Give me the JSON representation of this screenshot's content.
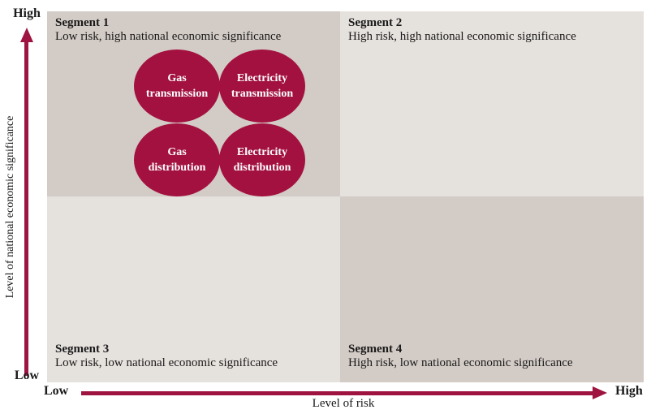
{
  "matrix": {
    "quadrants": [
      {
        "title": "Segment 1",
        "description": "Low risk, high national economic significance",
        "position": "top-left",
        "shade": "dark"
      },
      {
        "title": "Segment 2",
        "description": "High risk, high national economic significance",
        "position": "top-right",
        "shade": "light"
      },
      {
        "title": "Segment 3",
        "description": "Low risk, low national economic significance",
        "position": "bottom-left",
        "shade": "light"
      },
      {
        "title": "Segment 4",
        "description": "High risk, low national economic significance",
        "position": "bottom-right",
        "shade": "dark"
      }
    ],
    "bubbles": [
      {
        "name": "gas-transmission",
        "line1": "Gas",
        "line2": "transmission"
      },
      {
        "name": "electricity-transmission",
        "line1": "Electricity",
        "line2": "transmission"
      },
      {
        "name": "gas-distribution",
        "line1": "Gas",
        "line2": "distribution"
      },
      {
        "name": "electricity-distribution",
        "line1": "Electricity",
        "line2": "distribution"
      }
    ]
  },
  "axes": {
    "y": {
      "label": "Level of national economic significance",
      "high": "High",
      "low": "Low"
    },
    "x": {
      "label": "Level of risk",
      "low": "Low",
      "high": "High"
    }
  },
  "colors": {
    "bubble": "#a31140",
    "arrow": "#9e1340",
    "quadrant_dark": "#d3cbc5",
    "quadrant_light": "#e5e1dd",
    "bubble_text": "#ffffff",
    "text": "#1a1a1a"
  }
}
